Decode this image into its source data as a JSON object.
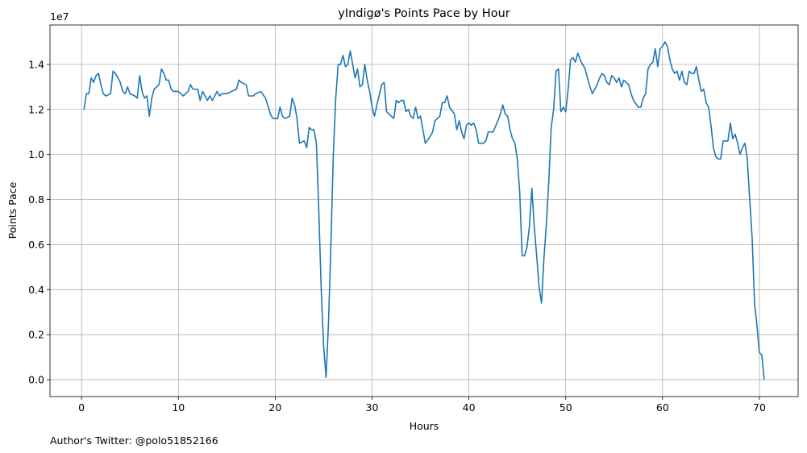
{
  "chart_data": {
    "type": "line",
    "title": "yIndigø's Points Pace by Hour",
    "xlabel": "Hours",
    "ylabel": "Points Pace",
    "y_offset_label": "1e7",
    "footnote": "Author's Twitter: @polo51852166",
    "xlim": [
      -3.26,
      74.0
    ],
    "ylim": [
      -0.075,
      1.575
    ],
    "xticks": [
      0,
      10,
      20,
      30,
      40,
      50,
      60,
      70
    ],
    "yticks": [
      {
        "value": 0,
        "label": "0.0"
      },
      0.2,
      0.4,
      0.6,
      0.8,
      {
        "value": 1,
        "label": "1.0"
      },
      1.2,
      1.4
    ],
    "grid": true,
    "x": [
      0.25,
      0.5,
      0.75,
      1,
      1.25,
      1.5,
      1.75,
      2,
      2.25,
      2.5,
      3,
      3.25,
      3.5,
      4,
      4.25,
      4.5,
      4.75,
      5,
      5.5,
      5.75,
      6,
      6.25,
      6.5,
      6.75,
      7,
      7.25,
      7.5,
      8,
      8.25,
      8.5,
      8.75,
      9,
      9.25,
      9.5,
      10,
      10.25,
      10.5,
      11,
      11.25,
      11.5,
      12,
      12.25,
      12.5,
      13,
      13.25,
      13.5,
      14,
      14.25,
      14.5,
      15,
      15.5,
      16,
      16.25,
      16.5,
      17,
      17.25,
      17.75,
      18,
      18.5,
      19,
      19.5,
      19.75,
      20.25,
      20.5,
      20.75,
      21,
      21.5,
      21.75,
      22,
      22.25,
      22.5,
      23,
      23.25,
      23.5,
      23.75,
      24,
      24.25,
      24.5,
      24.75,
      25,
      25.25,
      25.5,
      25.75,
      26,
      26.25,
      26.5,
      26.75,
      27,
      27.25,
      27.5,
      27.75,
      28,
      28.25,
      28.5,
      28.75,
      29,
      29.25,
      29.5,
      29.75,
      30,
      30.25,
      30.5,
      31,
      31.25,
      31.5,
      32,
      32.25,
      32.5,
      32.75,
      33,
      33.25,
      33.5,
      33.75,
      34,
      34.25,
      34.5,
      34.75,
      35,
      35.5,
      36,
      36.25,
      36.5,
      37,
      37.25,
      37.5,
      37.75,
      38,
      38.5,
      38.75,
      39,
      39.25,
      39.5,
      39.75,
      40,
      40.25,
      40.5,
      40.75,
      41,
      41.5,
      41.75,
      42,
      42.5,
      43,
      43.25,
      43.5,
      43.75,
      44,
      44.25,
      44.5,
      44.75,
      45,
      45.25,
      45.5,
      45.75,
      46,
      46.25,
      46.5,
      46.75,
      47,
      47.25,
      47.5,
      47.75,
      48,
      48.25,
      48.5,
      48.75,
      49,
      49.25,
      49.5,
      49.75,
      50,
      50.25,
      50.5,
      50.75,
      51,
      51.25,
      51.5,
      52,
      52.25,
      52.5,
      52.75,
      53,
      53.25,
      53.5,
      53.75,
      54,
      54.25,
      54.5,
      54.75,
      55,
      55.25,
      55.5,
      55.75,
      56,
      56.5,
      56.75,
      57,
      57.5,
      57.75,
      58,
      58.25,
      58.5,
      58.75,
      59,
      59.25,
      59.5,
      59.75,
      60,
      60.25,
      60.5,
      60.75,
      61,
      61.25,
      61.5,
      61.75,
      62,
      62.25,
      62.5,
      62.75,
      63,
      63.25,
      63.5,
      63.75,
      64,
      64.25,
      64.5,
      64.75,
      65,
      65.25,
      65.5,
      65.75,
      66,
      66.25,
      66.5,
      66.75,
      67,
      67.25,
      67.5,
      67.75,
      68,
      68.25,
      68.5,
      68.75,
      69,
      69.25,
      69.5,
      69.75,
      70,
      70.25,
      70.5
    ],
    "series": [
      {
        "name": "Points Pace",
        "color": "#1f77b4",
        "values": [
          1.2,
          1.27,
          1.27,
          1.34,
          1.32,
          1.35,
          1.36,
          1.31,
          1.27,
          1.26,
          1.27,
          1.37,
          1.36,
          1.32,
          1.28,
          1.27,
          1.3,
          1.27,
          1.26,
          1.25,
          1.35,
          1.28,
          1.25,
          1.26,
          1.17,
          1.25,
          1.29,
          1.31,
          1.38,
          1.36,
          1.33,
          1.33,
          1.29,
          1.28,
          1.28,
          1.27,
          1.26,
          1.28,
          1.31,
          1.29,
          1.29,
          1.24,
          1.28,
          1.24,
          1.26,
          1.24,
          1.28,
          1.26,
          1.27,
          1.27,
          1.28,
          1.29,
          1.33,
          1.32,
          1.31,
          1.26,
          1.26,
          1.27,
          1.28,
          1.25,
          1.18,
          1.16,
          1.16,
          1.21,
          1.17,
          1.16,
          1.17,
          1.25,
          1.22,
          1.16,
          1.05,
          1.06,
          1.03,
          1.12,
          1.11,
          1.11,
          1.05,
          0.75,
          0.4,
          0.15,
          0.01,
          0.25,
          0.6,
          1.0,
          1.25,
          1.4,
          1.4,
          1.44,
          1.39,
          1.4,
          1.46,
          1.4,
          1.34,
          1.38,
          1.3,
          1.31,
          1.4,
          1.33,
          1.28,
          1.21,
          1.17,
          1.22,
          1.31,
          1.32,
          1.19,
          1.17,
          1.16,
          1.24,
          1.23,
          1.24,
          1.24,
          1.19,
          1.2,
          1.17,
          1.16,
          1.21,
          1.16,
          1.17,
          1.05,
          1.08,
          1.1,
          1.15,
          1.17,
          1.23,
          1.23,
          1.26,
          1.21,
          1.18,
          1.11,
          1.15,
          1.1,
          1.07,
          1.13,
          1.14,
          1.13,
          1.14,
          1.11,
          1.05,
          1.05,
          1.06,
          1.1,
          1.1,
          1.15,
          1.18,
          1.22,
          1.18,
          1.17,
          1.11,
          1.07,
          1.05,
          0.98,
          0.83,
          0.55,
          0.55,
          0.59,
          0.68,
          0.85,
          0.68,
          0.55,
          0.41,
          0.34,
          0.54,
          0.69,
          0.88,
          1.12,
          1.2,
          1.37,
          1.38,
          1.19,
          1.21,
          1.19,
          1.29,
          1.42,
          1.43,
          1.41,
          1.45,
          1.42,
          1.38,
          1.34,
          1.3,
          1.27,
          1.29,
          1.31,
          1.34,
          1.36,
          1.35,
          1.32,
          1.31,
          1.35,
          1.34,
          1.32,
          1.34,
          1.3,
          1.33,
          1.31,
          1.27,
          1.24,
          1.21,
          1.21,
          1.25,
          1.27,
          1.38,
          1.4,
          1.41,
          1.47,
          1.39,
          1.47,
          1.48,
          1.5,
          1.48,
          1.42,
          1.38,
          1.36,
          1.37,
          1.33,
          1.37,
          1.32,
          1.31,
          1.37,
          1.36,
          1.36,
          1.39,
          1.33,
          1.28,
          1.29,
          1.23,
          1.21,
          1.13,
          1.03,
          0.99,
          0.98,
          0.98,
          1.06,
          1.06,
          1.06,
          1.14,
          1.07,
          1.09,
          1.05,
          1.0,
          1.03,
          1.05,
          0.98,
          0.8,
          0.63,
          0.34,
          0.24,
          0.12,
          0.11,
          0.0
        ]
      }
    ]
  }
}
